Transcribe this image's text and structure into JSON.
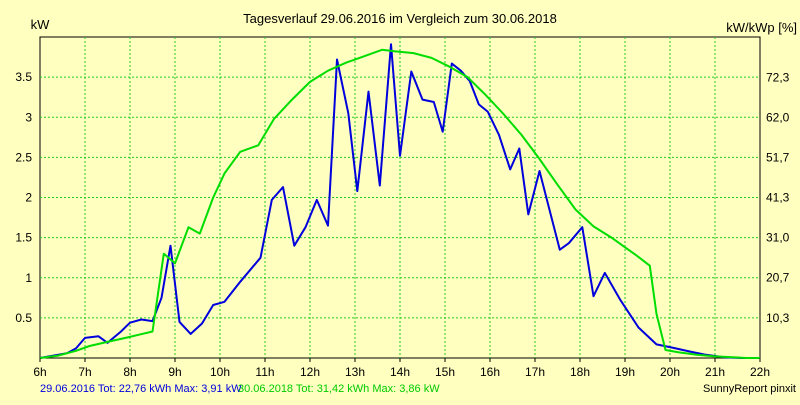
{
  "chart_data": {
    "type": "line",
    "title": "Tagesverlauf 29.06.2016 im Vergleich zum 30.06.2018",
    "ylabel": "kW",
    "y2label": "kW/kWp [%]",
    "xlim": [
      6,
      22
    ],
    "ylim": [
      0,
      4.0
    ],
    "y2lim": [
      0,
      82.67
    ],
    "grid": true,
    "x_ticks": [
      {
        "value": 6,
        "label": "6h"
      },
      {
        "value": 7,
        "label": "7h"
      },
      {
        "value": 8,
        "label": "8h"
      },
      {
        "value": 9,
        "label": "9h"
      },
      {
        "value": 10,
        "label": "10h"
      },
      {
        "value": 11,
        "label": "11h"
      },
      {
        "value": 12,
        "label": "12h"
      },
      {
        "value": 13,
        "label": "13h"
      },
      {
        "value": 14,
        "label": "14h"
      },
      {
        "value": 15,
        "label": "15h"
      },
      {
        "value": 16,
        "label": "16h"
      },
      {
        "value": 17,
        "label": "17h"
      },
      {
        "value": 18,
        "label": "18h"
      },
      {
        "value": 19,
        "label": "19h"
      },
      {
        "value": 20,
        "label": "20h"
      },
      {
        "value": 21,
        "label": "21h"
      },
      {
        "value": 22,
        "label": "22h"
      }
    ],
    "y_ticks": [
      {
        "value": 0.5,
        "label": "0.5"
      },
      {
        "value": 1.0,
        "label": "1"
      },
      {
        "value": 1.5,
        "label": "1.5"
      },
      {
        "value": 2.0,
        "label": "2"
      },
      {
        "value": 2.5,
        "label": "2.5"
      },
      {
        "value": 3.0,
        "label": "3"
      },
      {
        "value": 3.5,
        "label": "3.5"
      }
    ],
    "y2_ticks": [
      {
        "value": 10.3,
        "label": "10,3"
      },
      {
        "value": 20.7,
        "label": "20,7"
      },
      {
        "value": 31.0,
        "label": "31,0"
      },
      {
        "value": 41.3,
        "label": "41,3"
      },
      {
        "value": 51.7,
        "label": "51,7"
      },
      {
        "value": 62.0,
        "label": "62,0"
      },
      {
        "value": 72.3,
        "label": "72,3"
      }
    ],
    "series": [
      {
        "name": "29.06.2016",
        "color": "#0000dd",
        "summary": "29.06.2016 Tot: 22,76 kWh Max: 3,91 kW",
        "points": [
          [
            6.0,
            0.0
          ],
          [
            6.3,
            0.03
          ],
          [
            6.6,
            0.06
          ],
          [
            6.8,
            0.12
          ],
          [
            7.0,
            0.25
          ],
          [
            7.3,
            0.27
          ],
          [
            7.5,
            0.19
          ],
          [
            7.8,
            0.33
          ],
          [
            8.0,
            0.44
          ],
          [
            8.25,
            0.48
          ],
          [
            8.5,
            0.46
          ],
          [
            8.7,
            0.75
          ],
          [
            8.9,
            1.4
          ],
          [
            9.1,
            0.45
          ],
          [
            9.35,
            0.3
          ],
          [
            9.6,
            0.43
          ],
          [
            9.85,
            0.66
          ],
          [
            10.1,
            0.7
          ],
          [
            10.45,
            0.95
          ],
          [
            10.9,
            1.25
          ],
          [
            11.15,
            1.97
          ],
          [
            11.4,
            2.13
          ],
          [
            11.65,
            1.4
          ],
          [
            11.9,
            1.63
          ],
          [
            12.15,
            1.97
          ],
          [
            12.4,
            1.65
          ],
          [
            12.6,
            3.72
          ],
          [
            12.85,
            3.05
          ],
          [
            13.05,
            2.08
          ],
          [
            13.3,
            3.32
          ],
          [
            13.55,
            2.15
          ],
          [
            13.8,
            3.91
          ],
          [
            14.0,
            2.52
          ],
          [
            14.25,
            3.57
          ],
          [
            14.5,
            3.22
          ],
          [
            14.75,
            3.19
          ],
          [
            14.95,
            2.82
          ],
          [
            15.15,
            3.67
          ],
          [
            15.35,
            3.58
          ],
          [
            15.55,
            3.45
          ],
          [
            15.75,
            3.16
          ],
          [
            15.95,
            3.07
          ],
          [
            16.2,
            2.78
          ],
          [
            16.45,
            2.35
          ],
          [
            16.65,
            2.61
          ],
          [
            16.85,
            1.79
          ],
          [
            17.1,
            2.33
          ],
          [
            17.55,
            1.35
          ],
          [
            17.75,
            1.43
          ],
          [
            18.05,
            1.63
          ],
          [
            18.3,
            0.77
          ],
          [
            18.55,
            1.06
          ],
          [
            18.9,
            0.72
          ],
          [
            19.3,
            0.38
          ],
          [
            19.7,
            0.17
          ],
          [
            20.05,
            0.13
          ],
          [
            20.45,
            0.08
          ],
          [
            20.8,
            0.04
          ],
          [
            21.2,
            0.01
          ],
          [
            21.6,
            0.0
          ],
          [
            22.0,
            0.0
          ]
        ]
      },
      {
        "name": "30.06.2018",
        "color": "#00dd00",
        "summary": "30.06.2018 Tot: 31,42 kWh Max: 3,86 kW",
        "points": [
          [
            6.0,
            0.0
          ],
          [
            6.4,
            0.03
          ],
          [
            6.8,
            0.09
          ],
          [
            7.1,
            0.15
          ],
          [
            7.5,
            0.2
          ],
          [
            7.9,
            0.25
          ],
          [
            8.2,
            0.29
          ],
          [
            8.5,
            0.33
          ],
          [
            8.75,
            1.3
          ],
          [
            9.0,
            1.18
          ],
          [
            9.3,
            1.63
          ],
          [
            9.55,
            1.55
          ],
          [
            9.85,
            2.0
          ],
          [
            10.1,
            2.3
          ],
          [
            10.45,
            2.57
          ],
          [
            10.85,
            2.65
          ],
          [
            11.2,
            2.98
          ],
          [
            11.6,
            3.22
          ],
          [
            12.0,
            3.44
          ],
          [
            12.4,
            3.58
          ],
          [
            12.8,
            3.68
          ],
          [
            13.2,
            3.76
          ],
          [
            13.6,
            3.84
          ],
          [
            13.9,
            3.82
          ],
          [
            14.3,
            3.8
          ],
          [
            14.7,
            3.74
          ],
          [
            15.1,
            3.63
          ],
          [
            15.5,
            3.5
          ],
          [
            15.9,
            3.28
          ],
          [
            16.3,
            3.04
          ],
          [
            16.7,
            2.78
          ],
          [
            17.1,
            2.48
          ],
          [
            17.5,
            2.16
          ],
          [
            17.9,
            1.85
          ],
          [
            18.3,
            1.64
          ],
          [
            18.7,
            1.5
          ],
          [
            19.0,
            1.38
          ],
          [
            19.25,
            1.28
          ],
          [
            19.55,
            1.15
          ],
          [
            19.7,
            0.55
          ],
          [
            19.9,
            0.1
          ],
          [
            20.2,
            0.07
          ],
          [
            20.6,
            0.04
          ],
          [
            21.0,
            0.02
          ],
          [
            21.4,
            0.01
          ],
          [
            21.7,
            0.0
          ],
          [
            22.0,
            0.0
          ]
        ]
      }
    ],
    "footer_credit": "SunnyReport pinxit"
  }
}
